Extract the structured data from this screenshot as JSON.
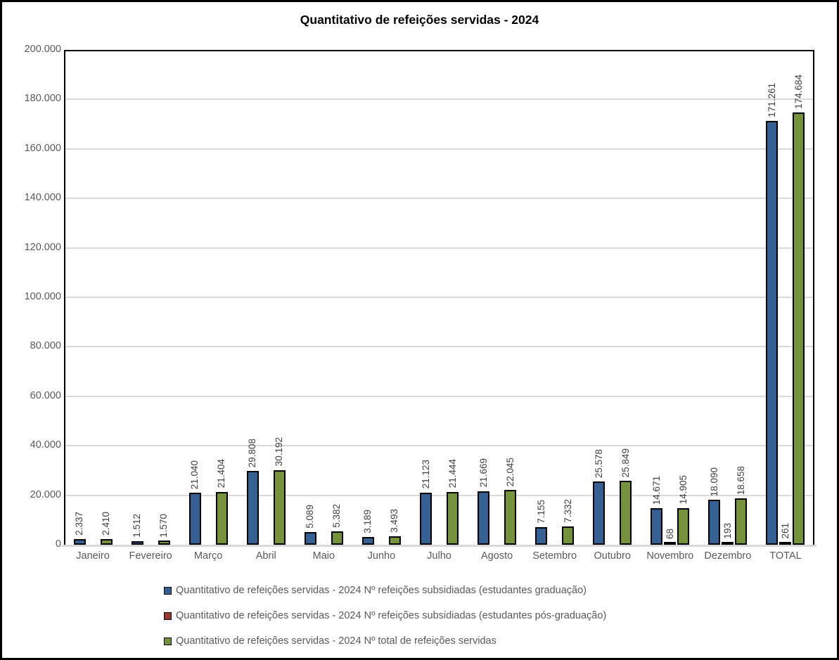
{
  "title": "Quantitativo de refeições servidas - 2024",
  "chart_data": {
    "type": "bar",
    "title": "Quantitativo de refeições servidas - 2024",
    "categories": [
      "Janeiro",
      "Fevereiro",
      "Março",
      "Abril",
      "Maio",
      "Junho",
      "Julho",
      "Agosto",
      "Setembro",
      "Outubro",
      "Novembro",
      "Dezembro",
      "TOTAL"
    ],
    "series": [
      {
        "name": "Quantitativo de refeições servidas - 2024 Nº refeições subsidiadas (estudantes graduação)",
        "color": "#376092",
        "values": [
          2337,
          1512,
          21040,
          29808,
          5089,
          3189,
          21123,
          21669,
          7155,
          25578,
          14671,
          18090,
          171261
        ],
        "labels": [
          "2.337",
          "1.512",
          "21.040",
          "29.808",
          "5.089",
          "3.189",
          "21.123",
          "21.669",
          "7.155",
          "25.578",
          "14.671",
          "18.090",
          "171.261"
        ]
      },
      {
        "name": "Quantitativo de refeições servidas - 2024 Nº refeições subsidiadas (estudantes pós-graduação)",
        "color": "#953735",
        "values": [
          0,
          0,
          0,
          0,
          0,
          0,
          0,
          0,
          0,
          0,
          68,
          193,
          261
        ],
        "labels": [
          "",
          "",
          "",
          "",
          "",
          "",
          "",
          "",
          "",
          "",
          "68",
          "193",
          "261"
        ]
      },
      {
        "name": "Quantitativo de refeições servidas - 2024 Nº total de refeições servidas",
        "color": "#76923C",
        "values": [
          2410,
          1570,
          21404,
          30192,
          5382,
          3493,
          21444,
          22045,
          7332,
          25849,
          14905,
          18658,
          174684
        ],
        "labels": [
          "2.410",
          "1.570",
          "21.404",
          "30.192",
          "5.382",
          "3.493",
          "21.444",
          "22.045",
          "7.332",
          "25.849",
          "14.905",
          "18.658",
          "174.684"
        ]
      }
    ],
    "ylim": [
      0,
      200000
    ],
    "ytick_step": 20000,
    "ytick_labels": [
      "0",
      "20.000",
      "40.000",
      "60.000",
      "80.000",
      "100.000",
      "120.000",
      "140.000",
      "160.000",
      "180.000",
      "200.000"
    ],
    "grid": true,
    "legend_position": "bottom-left",
    "bar_outline_color": "#000000"
  },
  "colors": {
    "grid": "#D9D9D9",
    "axis_text": "#595959",
    "data_label_text": "#404040",
    "frame_border": "#000000",
    "background": "#FFFFFF"
  }
}
